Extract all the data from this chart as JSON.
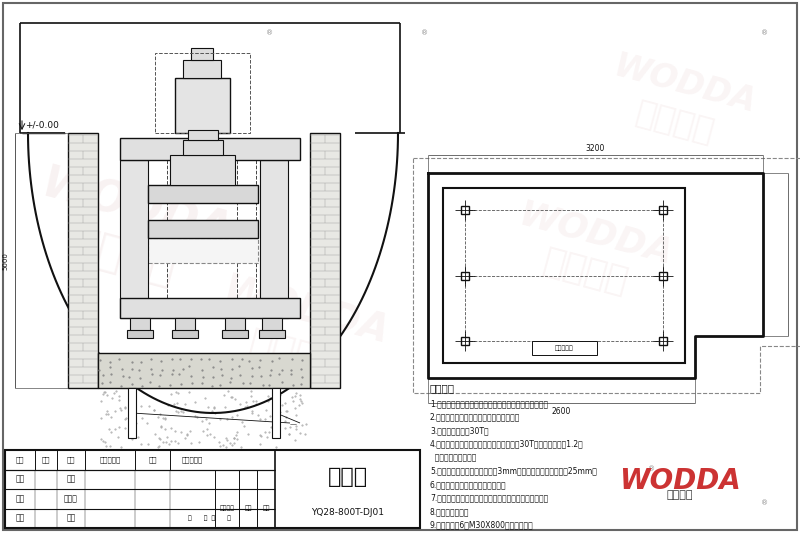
{
  "bg_color": "#ffffff",
  "lc": "#111111",
  "gray1": "#cccccc",
  "gray2": "#aaaaaa",
  "gray3": "#888888",
  "watermark_pink": "#e8c8c8",
  "tech_title": "技术要求",
  "tech_items": [
    "1.本地基图仅作土建部门设计任务书，不作地基施工图。",
    "2.本图仅供设计机器地基及机器安装参考。",
    "3.基础承受静载约30T。",
    "4.请用户根据本地的地质情况，按承受静载30T动载系数不小于1.2设",
    "  计基础的承载能力。",
    "5.地基平面水平误差全长不大于3mm，预留孔位置误差不大于25mm。",
    "6.电器控制箱、电源线路现场布置。",
    "7.主机地坑、照明、通风、防潮及排水设施用户自行考虑",
    "8.操作位置如图。",
    "9.地脚螺栓：6支M30X800，用户自备。"
  ],
  "title_main": "地基图",
  "title_sub": "YQ28-800T-DJ01",
  "table_headers": [
    "标记",
    "处数",
    "分区",
    "更改文件号",
    "签名",
    "年、月、日"
  ],
  "row1_left": "设计",
  "row1_mid": "工艺",
  "row2_left": "制图",
  "row2_mid": "标准化",
  "row3_left": "审核",
  "row3_mid": "批准",
  "row3_right": "共      张  第      张",
  "extra_labels": [
    "阶段标记",
    "重量",
    "比例"
  ],
  "ground_label": "+/-0.00",
  "label_depth": "5000",
  "plan_label": "地脚螺栓孔"
}
